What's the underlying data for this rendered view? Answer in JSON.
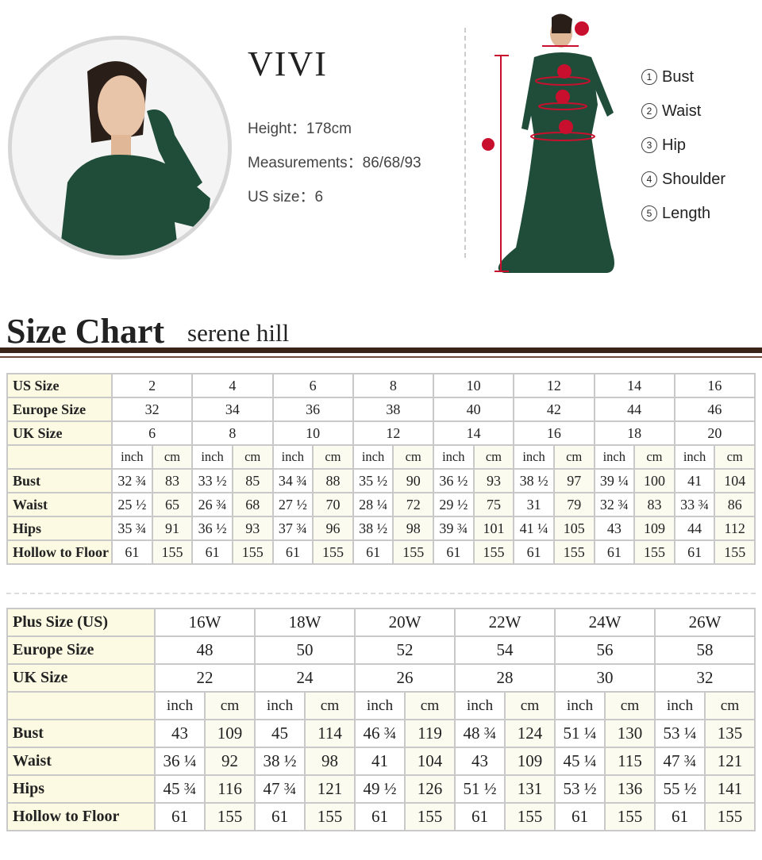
{
  "model": {
    "name": "VIVI",
    "height": "Height：178cm",
    "measurements": "Measurements：86/68/93",
    "us_size": "US size：6"
  },
  "measure_guide": [
    {
      "num": "1",
      "label": "Bust"
    },
    {
      "num": "2",
      "label": "Waist"
    },
    {
      "num": "3",
      "label": "Hip"
    },
    {
      "num": "4",
      "label": "Shoulder"
    },
    {
      "num": "5",
      "label": "Length"
    }
  ],
  "marker_color": "#c8102e",
  "dress_color": "#1f4d3a",
  "size_chart": {
    "title": "Size Chart",
    "brand": "serene hill"
  },
  "standard_table": {
    "us_label": "US Size",
    "us": [
      "2",
      "4",
      "6",
      "8",
      "10",
      "12",
      "14",
      "16"
    ],
    "eu_label": "Europe Size",
    "eu": [
      "32",
      "34",
      "36",
      "38",
      "40",
      "42",
      "44",
      "46"
    ],
    "uk_label": "UK Size",
    "uk": [
      "6",
      "8",
      "10",
      "12",
      "14",
      "16",
      "18",
      "20"
    ],
    "unit_inch": "inch",
    "unit_cm": "cm",
    "rows": [
      {
        "label": "Bust",
        "values": [
          "32 ¾",
          "83",
          "33 ½",
          "85",
          "34 ¾",
          "88",
          "35 ½",
          "90",
          "36 ½",
          "93",
          "38 ½",
          "97",
          "39 ¼",
          "100",
          "41",
          "104"
        ]
      },
      {
        "label": "Waist",
        "values": [
          "25 ½",
          "65",
          "26 ¾",
          "68",
          "27 ½",
          "70",
          "28 ¼",
          "72",
          "29 ½",
          "75",
          "31",
          "79",
          "32 ¾",
          "83",
          "33 ¾",
          "86"
        ]
      },
      {
        "label": "Hips",
        "values": [
          "35 ¾",
          "91",
          "36 ½",
          "93",
          "37 ¾",
          "96",
          "38 ½",
          "98",
          "39 ¾",
          "101",
          "41 ¼",
          "105",
          "43",
          "109",
          "44",
          "112"
        ]
      },
      {
        "label": "Hollow to Floor",
        "values": [
          "61",
          "155",
          "61",
          "155",
          "61",
          "155",
          "61",
          "155",
          "61",
          "155",
          "61",
          "155",
          "61",
          "155",
          "61",
          "155"
        ]
      }
    ]
  },
  "plus_table": {
    "us_label": "Plus Size (US)",
    "us": [
      "16W",
      "18W",
      "20W",
      "22W",
      "24W",
      "26W"
    ],
    "eu_label": "Europe Size",
    "eu": [
      "48",
      "50",
      "52",
      "54",
      "56",
      "58"
    ],
    "uk_label": "UK Size",
    "uk": [
      "22",
      "24",
      "26",
      "28",
      "30",
      "32"
    ],
    "unit_inch": "inch",
    "unit_cm": "cm",
    "rows": [
      {
        "label": "Bust",
        "values": [
          "43",
          "109",
          "45",
          "114",
          "46 ¾",
          "119",
          "48 ¾",
          "124",
          "51 ¼",
          "130",
          "53 ¼",
          "135"
        ]
      },
      {
        "label": "Waist",
        "values": [
          "36 ¼",
          "92",
          "38 ½",
          "98",
          "41",
          "104",
          "43",
          "109",
          "45 ¼",
          "115",
          "47 ¾",
          "121"
        ]
      },
      {
        "label": "Hips",
        "values": [
          "45 ¾",
          "116",
          "47 ¾",
          "121",
          "49 ½",
          "126",
          "51 ½",
          "131",
          "53 ½",
          "136",
          "55 ½",
          "141"
        ]
      },
      {
        "label": "Hollow to Floor",
        "values": [
          "61",
          "155",
          "61",
          "155",
          "61",
          "155",
          "61",
          "155",
          "61",
          "155",
          "61",
          "155"
        ]
      }
    ]
  }
}
